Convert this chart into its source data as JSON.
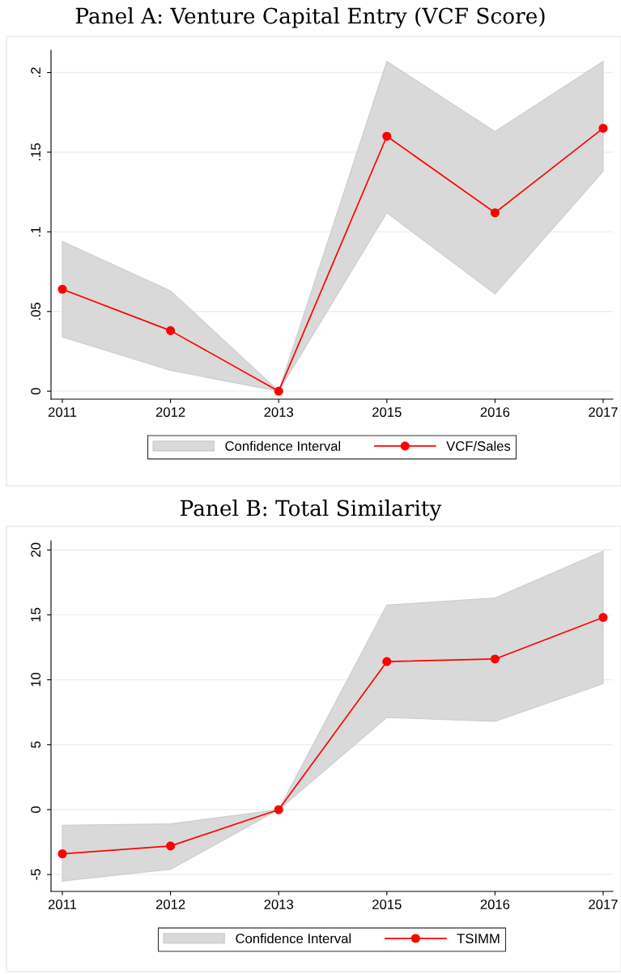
{
  "chart_data": [
    {
      "type": "line",
      "title": "Panel A: Venture Capital Entry (VCF Score)",
      "categories": [
        "2011",
        "2012",
        "2013",
        "2015",
        "2016",
        "2017"
      ],
      "series": [
        {
          "name": "VCF/Sales",
          "color": "#ff0000",
          "values": [
            0.064,
            0.038,
            0,
            0.16,
            0.112,
            0.165
          ],
          "lower": [
            0.034,
            0.013,
            0,
            0.112,
            0.061,
            0.138
          ],
          "upper": [
            0.094,
            0.063,
            0,
            0.207,
            0.163,
            0.207
          ]
        }
      ],
      "annotations": [
        "Confidence Interval"
      ],
      "ylim": [
        -0.005,
        0.214
      ],
      "yticks": [
        {
          "value": 0,
          "label": "0"
        },
        {
          "value": 0.05,
          "label": ".05"
        },
        {
          "value": 0.1,
          "label": ".1"
        },
        {
          "value": 0.15,
          "label": ".15"
        },
        {
          "value": 0.2,
          "label": ".2"
        }
      ],
      "grid": "y",
      "legend": "bottom",
      "marker": "circle",
      "line_style": "solid"
    },
    {
      "type": "line",
      "title": "Panel B: Total Similarity",
      "categories": [
        "2011",
        "2012",
        "2013",
        "2015",
        "2016",
        "2017"
      ],
      "series": [
        {
          "name": "TSIMM",
          "color": "#ff0000",
          "values": [
            -3.4,
            -2.8,
            0,
            11.4,
            11.6,
            14.8
          ],
          "lower": [
            -5.5,
            -4.6,
            0,
            7.1,
            6.8,
            9.7
          ],
          "upper": [
            -1.2,
            -1.1,
            0,
            15.75,
            16.3,
            19.9
          ]
        }
      ],
      "annotations": [
        "Confidence Interval"
      ],
      "ylim": [
        -6.3,
        20.7
      ],
      "yticks": [
        {
          "value": -5,
          "label": "-5"
        },
        0,
        5,
        10,
        15,
        20
      ],
      "grid": "y",
      "legend": "bottom",
      "marker": "circle",
      "line_style": "solid"
    }
  ]
}
